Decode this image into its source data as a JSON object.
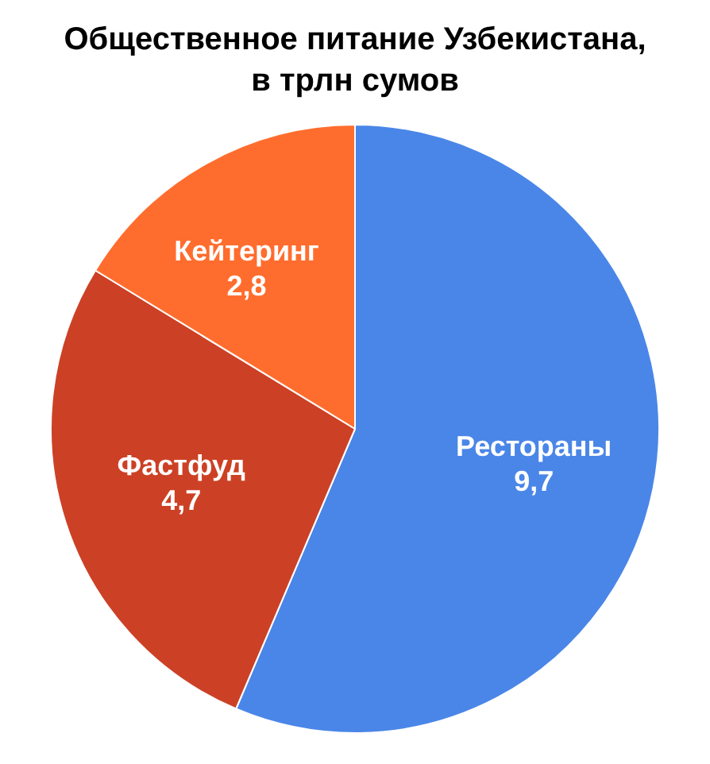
{
  "chart_data": {
    "type": "pie",
    "title": "Общественное питание Узбекистана, в трлн сумов",
    "categories": [
      "Рестораны",
      "Фастфуд",
      "Кейтеринг"
    ],
    "values": [
      9.7,
      4.7,
      2.8
    ],
    "value_labels": [
      "9,7",
      "4,7",
      "2,8"
    ],
    "colors": [
      "#4a86e8",
      "#cc4125",
      "#ff6d2e"
    ],
    "legend": false
  }
}
